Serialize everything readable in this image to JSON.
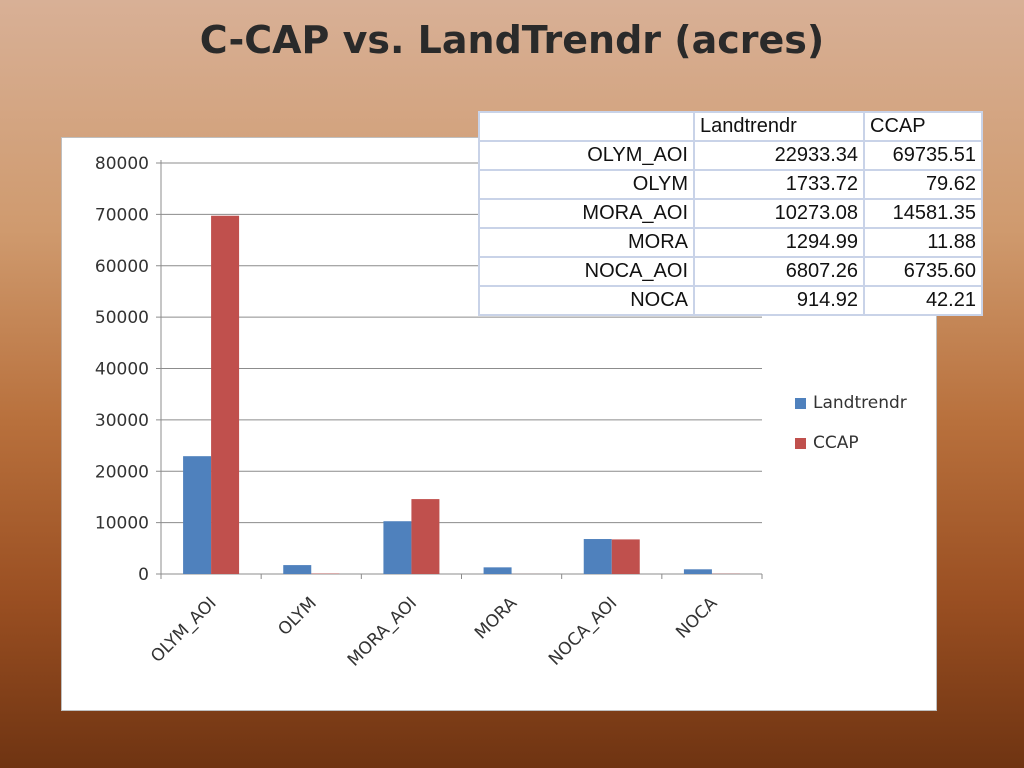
{
  "title": "C-CAP vs. LandTrendr (acres)",
  "colors": {
    "landtrendr": "#4f81bd",
    "ccap": "#c0504d",
    "grid": "#8c8c8c"
  },
  "table": {
    "headers": [
      "",
      "Landtrendr",
      "CCAP"
    ],
    "rows": [
      [
        "OLYM_AOI",
        "22933.34",
        "69735.51"
      ],
      [
        "OLYM",
        "1733.72",
        "79.62"
      ],
      [
        "MORA_AOI",
        "10273.08",
        "14581.35"
      ],
      [
        "MORA",
        "1294.99",
        "11.88"
      ],
      [
        "NOCA_AOI",
        "6807.26",
        "6735.60"
      ],
      [
        "NOCA",
        "914.92",
        "42.21"
      ]
    ]
  },
  "chart_data": {
    "type": "bar",
    "categories": [
      "OLYM_AOI",
      "OLYM",
      "MORA_AOI",
      "MORA",
      "NOCA_AOI",
      "NOCA"
    ],
    "series": [
      {
        "name": "Landtrendr",
        "values": [
          22933.34,
          1733.72,
          10273.08,
          1294.99,
          6807.26,
          914.92
        ]
      },
      {
        "name": "CCAP",
        "values": [
          69735.51,
          79.62,
          14581.35,
          11.88,
          6735.6,
          42.21
        ]
      }
    ],
    "yticks": [
      "0",
      "10000",
      "20000",
      "30000",
      "40000",
      "50000",
      "60000",
      "70000",
      "80000"
    ],
    "ylim": [
      0,
      80000
    ],
    "grid": true,
    "legend": "right"
  }
}
